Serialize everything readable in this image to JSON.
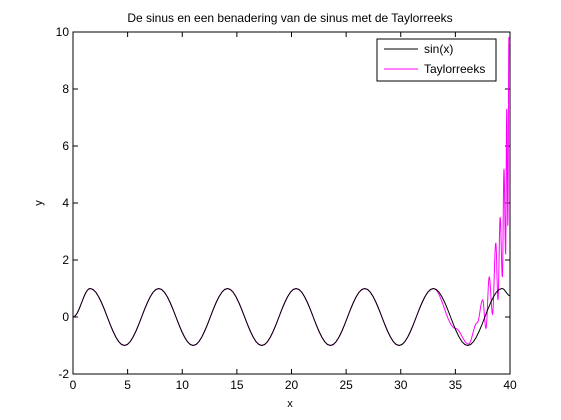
{
  "chart_data": {
    "type": "line",
    "title": "De sinus en een benadering van de sinus met de Taylorreeks",
    "xlabel": "x",
    "ylabel": "y",
    "xlim": [
      0,
      40
    ],
    "ylim": [
      -2,
      10
    ],
    "x_ticks": [
      0,
      5,
      10,
      15,
      20,
      25,
      30,
      35,
      40
    ],
    "y_ticks": [
      -2,
      0,
      2,
      4,
      6,
      8,
      10
    ],
    "x_tick_labels": [
      "0",
      "5",
      "10",
      "15",
      "20",
      "25",
      "30",
      "35",
      "40"
    ],
    "y_tick_labels": [
      "-2",
      "0",
      "2",
      "4",
      "6",
      "8",
      "10"
    ],
    "grid": false,
    "legend_position": "top-right",
    "series": [
      {
        "name": "sin(x)",
        "color": "#000000",
        "x": [
          0,
          1.57,
          4.71,
          7.85,
          11.0,
          14.14,
          17.28,
          20.42,
          23.56,
          26.7,
          29.85,
          32.99,
          36.13,
          39.27,
          40
        ],
        "y": [
          0,
          1,
          -1,
          1,
          -1,
          1,
          -1,
          1,
          -1,
          1,
          -1,
          1,
          -1,
          1,
          0.75
        ]
      },
      {
        "name": "Taylorreeks",
        "color": "#ff00ff",
        "x": [
          0,
          1.57,
          4.71,
          7.85,
          11.0,
          14.14,
          17.28,
          20.42,
          23.56,
          26.7,
          29.85,
          32.99,
          35.0,
          36.2,
          37.0,
          37.5,
          37.8,
          38.1,
          38.4,
          38.7,
          38.9,
          39.1,
          39.3,
          39.45,
          39.6,
          39.7,
          39.8,
          39.9,
          40.0
        ],
        "y": [
          0,
          1,
          -1,
          1,
          -1,
          1,
          -1,
          1,
          -1,
          1,
          -1,
          1,
          -0.4,
          -0.95,
          -0.2,
          0.6,
          -0.4,
          1.4,
          0.1,
          2.6,
          0.6,
          3.5,
          1.4,
          5.2,
          2.2,
          7.3,
          3.2,
          9.8,
          9.6
        ]
      }
    ]
  }
}
